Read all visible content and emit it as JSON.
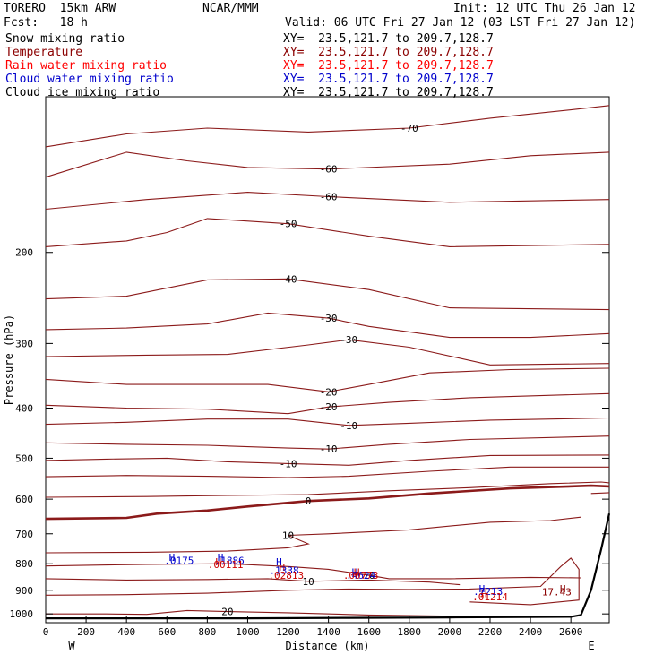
{
  "header": {
    "model": "TORERO  15km ARW",
    "org": "NCAR/MMM",
    "init": "Init: 12 UTC Thu 26 Jan 12",
    "fcst": "Fcst:   18 h",
    "valid": "Valid: 06 UTC Fri 27 Jan 12 (03 LST Fri 27 Jan 12)"
  },
  "legend": [
    {
      "label": "Snow mixing ratio",
      "xy": "XY=  23.5,121.7 to 209.7,128.7",
      "color": "#000000"
    },
    {
      "label": "Temperature",
      "xy": "XY=  23.5,121.7 to 209.7,128.7",
      "color": "#8b0000"
    },
    {
      "label": "Rain water mixing ratio",
      "xy": "XY=  23.5,121.7 to 209.7,128.7",
      "color": "#ff0000"
    },
    {
      "label": "Cloud water mixing ratio",
      "xy": "XY=  23.5,121.7 to 209.7,128.7",
      "color": "#0000cc"
    },
    {
      "label": "Cloud ice mixing ratio",
      "xy": "XY=  23.5,121.7 to 209.7,128.7",
      "color": "#000000"
    }
  ],
  "chart_data": {
    "type": "contour",
    "xlabel": "Distance (km)",
    "ylabel": "Pressure (hPa)",
    "xlim": [
      0,
      2790
    ],
    "ylim": [
      1040,
      100
    ],
    "x_ticks": [
      0,
      200,
      400,
      600,
      800,
      1000,
      1200,
      1400,
      1600,
      1800,
      2000,
      2200,
      2400,
      2600
    ],
    "y_ticks": [
      200,
      300,
      400,
      500,
      600,
      700,
      800,
      900,
      1000
    ],
    "x_end_left": "W",
    "x_end_right": "E",
    "temperature_isotherms": [
      {
        "label": "-70",
        "points": [
          [
            0,
            125
          ],
          [
            400,
            118
          ],
          [
            800,
            115
          ],
          [
            1300,
            117
          ],
          [
            1800,
            115
          ],
          [
            2200,
            110
          ],
          [
            2600,
            106
          ],
          [
            2790,
            104
          ]
        ]
      },
      {
        "label": "-60",
        "points": [
          [
            0,
            143
          ],
          [
            400,
            128
          ],
          [
            700,
            133
          ],
          [
            1000,
            137
          ],
          [
            1400,
            138
          ],
          [
            2000,
            135
          ],
          [
            2400,
            130
          ],
          [
            2790,
            128
          ]
        ]
      },
      {
        "label": "-60",
        "points": [
          [
            0,
            165
          ],
          [
            500,
            158
          ],
          [
            1000,
            153
          ],
          [
            1400,
            156
          ],
          [
            2000,
            160
          ],
          [
            2790,
            158
          ]
        ]
      },
      {
        "label": "-50",
        "points": [
          [
            0,
            195
          ],
          [
            400,
            190
          ],
          [
            600,
            183
          ],
          [
            800,
            172
          ],
          [
            1200,
            176
          ],
          [
            1600,
            186
          ],
          [
            2000,
            195
          ],
          [
            2790,
            193
          ]
        ]
      },
      {
        "label": "-40",
        "points": [
          [
            0,
            246
          ],
          [
            400,
            243
          ],
          [
            800,
            226
          ],
          [
            1200,
            225
          ],
          [
            1600,
            236
          ],
          [
            2000,
            256
          ],
          [
            2790,
            258
          ]
        ]
      },
      {
        "label": "-30",
        "points": [
          [
            0,
            282
          ],
          [
            400,
            280
          ],
          [
            800,
            275
          ],
          [
            1100,
            262
          ],
          [
            1400,
            268
          ],
          [
            1600,
            278
          ],
          [
            2000,
            292
          ],
          [
            2400,
            292
          ],
          [
            2790,
            287
          ]
        ]
      },
      {
        "label": "-30",
        "points": [
          [
            0,
            318
          ],
          [
            500,
            316
          ],
          [
            900,
            315
          ],
          [
            1300,
            302
          ],
          [
            1500,
            295
          ],
          [
            1800,
            305
          ],
          [
            2200,
            330
          ],
          [
            2790,
            328
          ]
        ]
      },
      {
        "label": "-20",
        "points": [
          [
            0,
            352
          ],
          [
            400,
            360
          ],
          [
            800,
            360
          ],
          [
            1100,
            360
          ],
          [
            1400,
            372
          ],
          [
            1600,
            360
          ],
          [
            1900,
            342
          ],
          [
            2300,
            337
          ],
          [
            2790,
            335
          ]
        ]
      },
      {
        "label": "-20",
        "points": [
          [
            0,
            395
          ],
          [
            400,
            400
          ],
          [
            800,
            402
          ],
          [
            1200,
            410
          ],
          [
            1400,
            398
          ],
          [
            1700,
            390
          ],
          [
            2100,
            382
          ],
          [
            2790,
            375
          ]
        ]
      },
      {
        "label": "-10",
        "points": [
          [
            0,
            430
          ],
          [
            400,
            426
          ],
          [
            800,
            420
          ],
          [
            1200,
            420
          ],
          [
            1500,
            432
          ],
          [
            1800,
            428
          ],
          [
            2200,
            422
          ],
          [
            2790,
            418
          ]
        ]
      },
      {
        "label": "-10",
        "points": [
          [
            0,
            467
          ],
          [
            400,
            470
          ],
          [
            800,
            472
          ],
          [
            1200,
            478
          ],
          [
            1400,
            480
          ],
          [
            1700,
            470
          ],
          [
            2100,
            460
          ],
          [
            2790,
            453
          ]
        ]
      },
      {
        "label": "-10",
        "points": [
          [
            0,
            505
          ],
          [
            300,
            502
          ],
          [
            600,
            500
          ],
          [
            900,
            508
          ],
          [
            1200,
            512
          ],
          [
            1500,
            516
          ],
          [
            1800,
            505
          ],
          [
            2200,
            494
          ],
          [
            2790,
            493
          ]
        ]
      },
      {
        "label": "",
        "points": [
          [
            0,
            543
          ],
          [
            400,
            540
          ],
          [
            800,
            542
          ],
          [
            1200,
            545
          ],
          [
            1500,
            542
          ],
          [
            1900,
            530
          ],
          [
            2300,
            520
          ],
          [
            2790,
            520
          ]
        ]
      },
      {
        "label": "0",
        "points": [
          [
            0,
            655
          ],
          [
            400,
            652
          ],
          [
            550,
            640
          ],
          [
            800,
            631
          ],
          [
            1000,
            620
          ],
          [
            1300,
            605
          ],
          [
            1600,
            598
          ],
          [
            1900,
            585
          ],
          [
            2300,
            572
          ],
          [
            2700,
            565
          ],
          [
            2790,
            567
          ]
        ]
      },
      {
        "label": "",
        "points": [
          [
            0,
            595
          ],
          [
            500,
            593
          ],
          [
            900,
            590
          ],
          [
            1300,
            588
          ],
          [
            1700,
            578
          ],
          [
            2100,
            570
          ],
          [
            2500,
            560
          ],
          [
            2750,
            556
          ],
          [
            2790,
            558
          ]
        ]
      },
      {
        "label": "",
        "points": [
          [
            2700,
            585
          ],
          [
            2790,
            583
          ]
        ]
      },
      {
        "label": "10",
        "points": [
          [
            0,
            762
          ],
          [
            500,
            760
          ],
          [
            900,
            756
          ],
          [
            1200,
            745
          ],
          [
            1300,
            732
          ],
          [
            1200,
            705
          ],
          [
            1400,
            700
          ],
          [
            1800,
            688
          ],
          [
            2200,
            665
          ],
          [
            2500,
            660
          ],
          [
            2650,
            650
          ]
        ]
      },
      {
        "label": "10",
        "points": [
          [
            0,
            808
          ],
          [
            500,
            802
          ],
          [
            900,
            800
          ],
          [
            1200,
            810
          ],
          [
            1400,
            820
          ],
          [
            1600,
            842
          ],
          [
            1700,
            855
          ],
          [
            2000,
            855
          ],
          [
            2400,
            850
          ],
          [
            2650,
            852
          ]
        ]
      },
      {
        "label": "10",
        "points": [
          [
            0,
            855
          ],
          [
            400,
            860
          ],
          [
            800,
            858
          ],
          [
            1100,
            855
          ],
          [
            1300,
            865
          ],
          [
            1600,
            860
          ],
          [
            1900,
            868
          ],
          [
            2050,
            878
          ]
        ]
      },
      {
        "label": "",
        "points": [
          [
            0,
            920
          ],
          [
            400,
            918
          ],
          [
            800,
            912
          ],
          [
            1200,
            900
          ],
          [
            1500,
            895
          ],
          [
            1800,
            897
          ],
          [
            2100,
            895
          ],
          [
            2450,
            885
          ],
          [
            2550,
            810
          ],
          [
            2600,
            780
          ],
          [
            2640,
            820
          ],
          [
            2640,
            940
          ],
          [
            2400,
            960
          ],
          [
            2100,
            948
          ]
        ]
      },
      {
        "label": "20",
        "points": [
          [
            0,
            1000
          ],
          [
            300,
            1000
          ],
          [
            500,
            1002
          ],
          [
            700,
            985
          ],
          [
            900,
            990
          ],
          [
            1200,
            995
          ],
          [
            1600,
            1005
          ],
          [
            2000,
            1010
          ],
          [
            2300,
            1012
          ]
        ]
      }
    ],
    "moisture_labels": [
      {
        "text": ".0175",
        "distance": 660,
        "pressure": 788,
        "color": "#0000cc"
      },
      {
        "text": ".1886",
        "distance": 910,
        "pressure": 788,
        "color": "#0000cc"
      },
      {
        "text": ".00111",
        "distance": 890,
        "pressure": 803,
        "color": "#cc0000"
      },
      {
        "text": ".1338",
        "distance": 1180,
        "pressure": 823,
        "color": "#0000cc"
      },
      {
        "text": ".02813",
        "distance": 1190,
        "pressure": 842,
        "color": "#cc0000"
      },
      {
        "text": ".4624",
        "distance": 1560,
        "pressure": 842,
        "color": "#0000cc"
      },
      {
        "text": ".00773",
        "distance": 1560,
        "pressure": 842,
        "color": "#cc0000"
      },
      {
        "text": ".7213",
        "distance": 2190,
        "pressure": 905,
        "color": "#0000cc"
      },
      {
        "text": ".01214",
        "distance": 2200,
        "pressure": 927,
        "color": "#cc0000"
      },
      {
        "text": "17.43",
        "distance": 2530,
        "pressure": 907,
        "color": "#8b0000"
      }
    ],
    "highs": [
      {
        "distance": 625,
        "pressure": 777,
        "color": "#0000cc"
      },
      {
        "distance": 865,
        "pressure": 777,
        "color": "#0000cc"
      },
      {
        "distance": 855,
        "pressure": 793,
        "color": "#cc0000"
      },
      {
        "distance": 1155,
        "pressure": 793,
        "color": "#0000cc"
      },
      {
        "distance": 1170,
        "pressure": 812,
        "color": "#cc0000"
      },
      {
        "distance": 1530,
        "pressure": 830,
        "color": "#0000cc"
      },
      {
        "distance": 1540,
        "pressure": 830,
        "color": "#cc0000"
      },
      {
        "distance": 2160,
        "pressure": 893,
        "color": "#0000cc"
      },
      {
        "distance": 2170,
        "pressure": 913,
        "color": "#cc0000"
      },
      {
        "distance": 2560,
        "pressure": 893,
        "color": "#8b0000"
      }
    ],
    "terrain_surface": [
      [
        0,
        1020
      ],
      [
        1000,
        1020
      ],
      [
        1500,
        1018
      ],
      [
        2000,
        1016
      ],
      [
        2600,
        1013
      ],
      [
        2650,
        1005
      ],
      [
        2700,
        900
      ],
      [
        2750,
        750
      ],
      [
        2790,
        640
      ]
    ]
  }
}
